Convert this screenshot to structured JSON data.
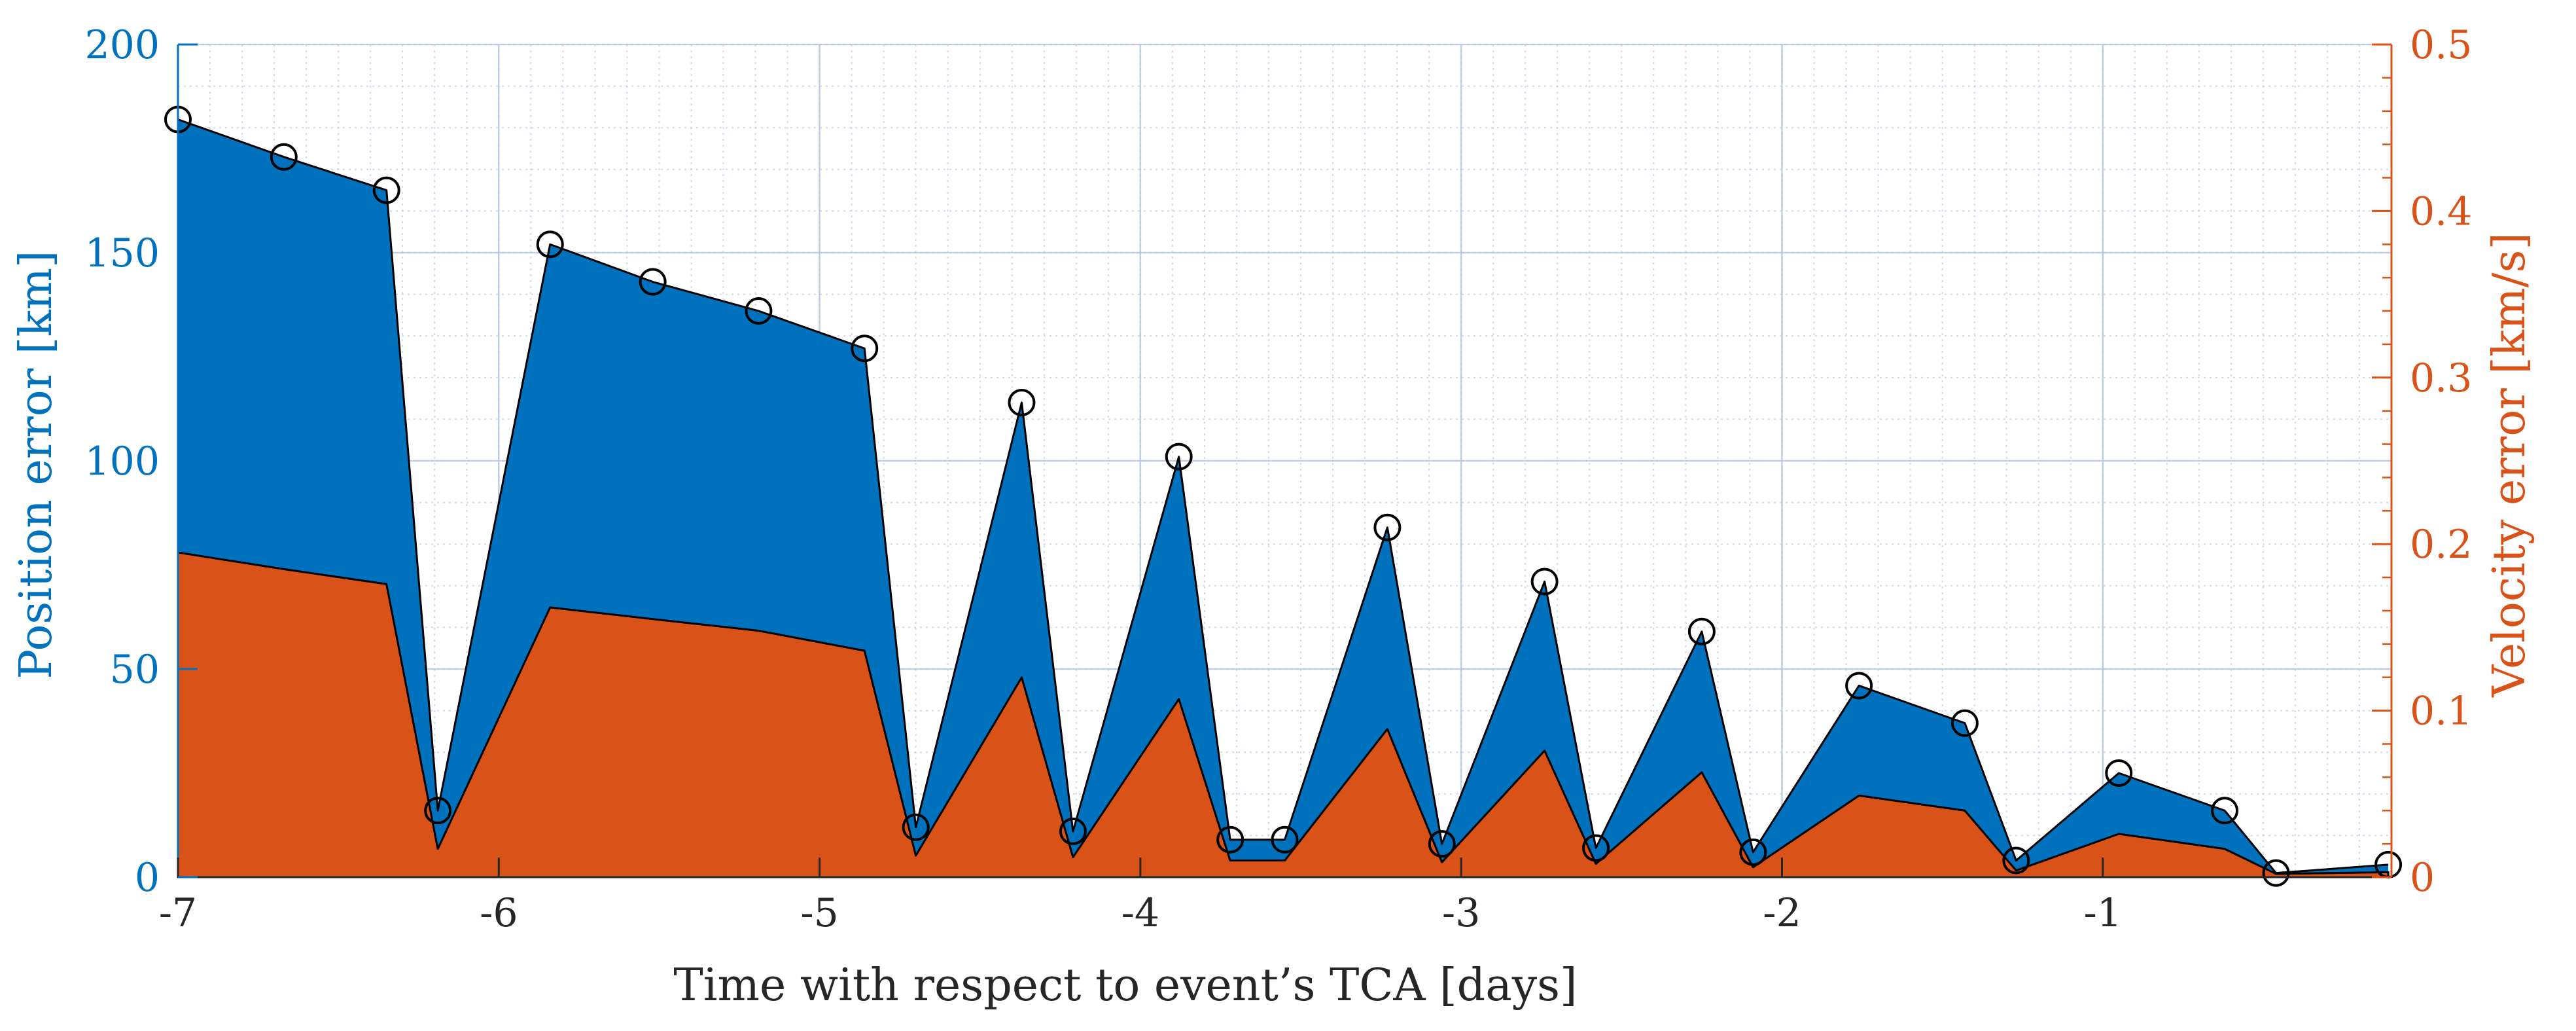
{
  "chart_data": {
    "type": "area",
    "xlabel": "Time with respect to event’s TCA [days]",
    "ylabel_left": "Position error [km]",
    "ylabel_right": "Velocity error [km/s]",
    "xlim": [
      -7,
      -0.1
    ],
    "ylim_left": [
      0,
      200
    ],
    "ylim_right": [
      0,
      0.5
    ],
    "grid": true,
    "minor_grid": true,
    "x_ticks": [
      -7,
      -6,
      -5,
      -4,
      -3,
      -2,
      -1
    ],
    "x_tick_labels": [
      "-7",
      "-6",
      "-5",
      "-4",
      "-3",
      "-2",
      "-1"
    ],
    "y_left_ticks": [
      0,
      50,
      100,
      150,
      200
    ],
    "y_left_tick_labels": [
      "0",
      "50",
      "100",
      "150",
      "200"
    ],
    "y_right_ticks": [
      0,
      0.1,
      0.2,
      0.3,
      0.4,
      0.5
    ],
    "y_right_tick_labels": [
      "0",
      "0.1",
      "0.2",
      "0.3",
      "0.4",
      "0.5"
    ],
    "colors": {
      "position": "#0072BD",
      "velocity": "#D95319",
      "marker_edge": "#000000",
      "grid": "#B0C4DE"
    },
    "x": [
      -7.0,
      -6.67,
      -6.35,
      -6.19,
      -5.84,
      -5.52,
      -5.19,
      -4.86,
      -4.7,
      -4.37,
      -4.21,
      -3.88,
      -3.72,
      -3.55,
      -3.23,
      -3.06,
      -2.74,
      -2.58,
      -2.25,
      -2.09,
      -1.76,
      -1.43,
      -1.27,
      -0.95,
      -0.62,
      -0.46,
      -0.11
    ],
    "position_km": [
      182,
      173,
      165,
      16,
      152,
      143,
      136,
      127,
      12,
      114,
      11,
      101,
      9,
      9,
      84,
      8,
      71,
      7,
      59,
      6,
      46,
      37,
      4,
      25,
      16,
      1,
      3
    ],
    "velocity_kms": [
      0.195,
      0.185,
      0.176,
      0.017,
      0.162,
      0.155,
      0.148,
      0.136,
      0.013,
      0.12,
      0.012,
      0.107,
      0.01,
      0.01,
      0.089,
      0.009,
      0.076,
      0.008,
      0.063,
      0.006,
      0.049,
      0.04,
      0.004,
      0.026,
      0.017,
      0.002,
      0.003
    ],
    "segment_breaks_after_index": [
      2,
      7,
      13,
      21,
      24
    ]
  }
}
